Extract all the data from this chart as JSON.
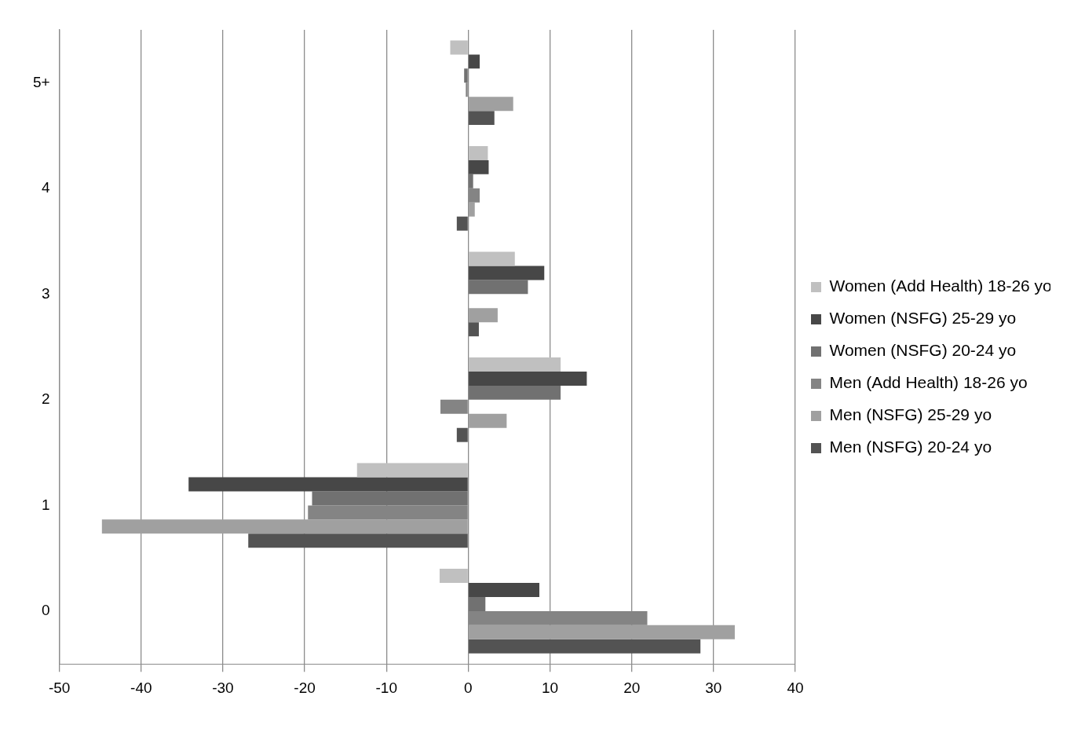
{
  "chart_data": {
    "type": "bar",
    "orientation": "horizontal",
    "categories": [
      "5+",
      "4",
      "3",
      "2",
      "1",
      "0"
    ],
    "series": [
      {
        "name": "Women (Add Health) 18-26 yo",
        "color": "#c0c0c0",
        "values": [
          -2.2,
          2.4,
          5.7,
          11.3,
          -13.6,
          -3.5
        ]
      },
      {
        "name": "Women (NSFG) 25-29 yo",
        "color": "#474747",
        "values": [
          1.4,
          2.5,
          9.3,
          14.5,
          -34.2,
          8.7
        ]
      },
      {
        "name": "Women (NSFG) 20-24 yo",
        "color": "#717171",
        "values": [
          -0.5,
          0.6,
          7.3,
          11.3,
          -19.1,
          2.1
        ]
      },
      {
        "name": "Men (Add Health) 18-26 yo",
        "color": "#848484",
        "values": [
          -0.3,
          1.4,
          0,
          -3.4,
          -19.6,
          21.9
        ]
      },
      {
        "name": "Men (NSFG) 25-29 yo",
        "color": "#a0a0a0",
        "values": [
          5.5,
          0.8,
          3.6,
          4.7,
          -44.8,
          32.6
        ]
      },
      {
        "name": "Men (NSFG) 20-24 yo",
        "color": "#535353",
        "values": [
          3.2,
          -1.4,
          1.3,
          -1.4,
          -26.9,
          28.4
        ]
      }
    ],
    "xlim": [
      -50,
      40
    ],
    "xticks": [
      -50,
      -40,
      -30,
      -20,
      -10,
      0,
      10,
      20,
      30,
      40
    ],
    "grid": "x",
    "legend": "right"
  }
}
